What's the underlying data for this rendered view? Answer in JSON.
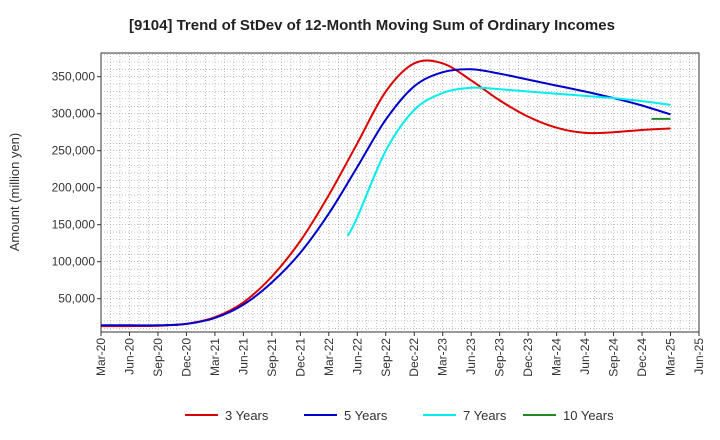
{
  "chart_data": {
    "type": "line",
    "title": "[9104]  Trend of StDev of 12-Month Moving Sum of Ordinary Incomes",
    "xlabel": "",
    "ylabel": "Amount (million yen)",
    "x_ticks": [
      "Mar-20",
      "Jun-20",
      "Sep-20",
      "Dec-20",
      "Mar-21",
      "Jun-21",
      "Sep-21",
      "Dec-21",
      "Mar-22",
      "Jun-22",
      "Sep-22",
      "Dec-22",
      "Mar-23",
      "Jun-23",
      "Sep-23",
      "Dec-23",
      "Mar-24",
      "Jun-24",
      "Sep-24",
      "Dec-24",
      "Mar-25",
      "Jun-25"
    ],
    "y_ticks": [
      50000,
      100000,
      150000,
      200000,
      250000,
      300000,
      350000
    ],
    "y_tick_labels": [
      "50,000",
      "100,000",
      "150,000",
      "200,000",
      "250,000",
      "300,000",
      "350,000"
    ],
    "ylim": [
      5000,
      382000
    ],
    "grid": true,
    "legend_position": "bottom",
    "series": [
      {
        "name": "3 Years",
        "color": "#dd0000",
        "x": [
          "Mar-20",
          "Jun-20",
          "Sep-20",
          "Dec-20",
          "Mar-21",
          "Jun-21",
          "Sep-21",
          "Dec-21",
          "Mar-22",
          "Jun-22",
          "Sep-22",
          "Dec-22",
          "Mar-23",
          "Jun-23",
          "Sep-23",
          "Dec-23",
          "Mar-24",
          "Jun-24",
          "Sep-24",
          "Dec-24",
          "Mar-25"
        ],
        "values": [
          13000,
          13000,
          13500,
          16000,
          25000,
          45000,
          80000,
          128000,
          190000,
          260000,
          330000,
          368000,
          368000,
          345000,
          318000,
          296000,
          281000,
          274000,
          275000,
          278000,
          280000
        ]
      },
      {
        "name": "5 Years",
        "color": "#0000cc",
        "x": [
          "Mar-20",
          "Jun-20",
          "Sep-20",
          "Dec-20",
          "Mar-21",
          "Jun-21",
          "Sep-21",
          "Dec-21",
          "Mar-22",
          "Jun-22",
          "Sep-22",
          "Dec-22",
          "Mar-23",
          "Jun-23",
          "Sep-23",
          "Dec-23",
          "Mar-24",
          "Jun-24",
          "Sep-24",
          "Dec-24",
          "Mar-25"
        ],
        "values": [
          14000,
          14000,
          14000,
          16000,
          24000,
          42000,
          72000,
          112000,
          165000,
          228000,
          292000,
          337000,
          356000,
          360000,
          354000,
          346000,
          338000,
          330000,
          321000,
          311000,
          299000
        ]
      },
      {
        "name": "7 Years",
        "color": "#00eeee",
        "x": [
          "May-22",
          "Jun-22",
          "Sep-22",
          "Dec-22",
          "Mar-23",
          "Jun-23",
          "Sep-23",
          "Dec-23",
          "Mar-24",
          "Jun-24",
          "Sep-24",
          "Dec-24",
          "Mar-25"
        ],
        "values": [
          135000,
          160000,
          250000,
          305000,
          328000,
          335000,
          333000,
          330000,
          327000,
          324000,
          321000,
          317000,
          312000
        ]
      },
      {
        "name": "10 Years",
        "color": "#228822",
        "x": [
          "Jan-25",
          "Mar-25"
        ],
        "values": [
          293000,
          293000
        ]
      }
    ]
  }
}
